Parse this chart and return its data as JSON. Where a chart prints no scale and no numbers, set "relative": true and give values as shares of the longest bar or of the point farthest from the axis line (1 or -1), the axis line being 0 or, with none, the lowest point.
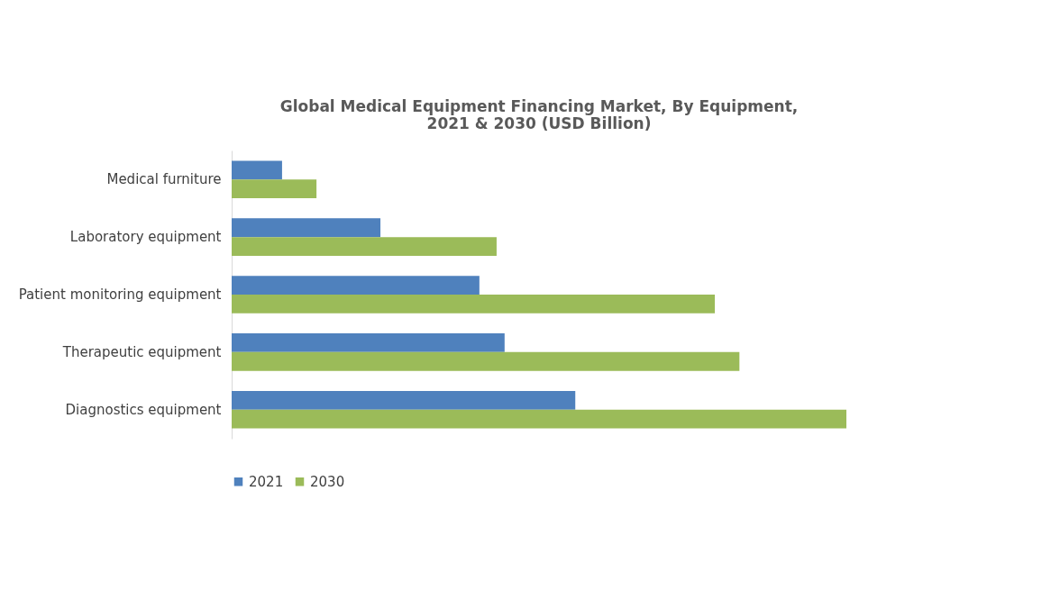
{
  "chart_data": {
    "type": "bar",
    "orientation": "horizontal",
    "relative": true,
    "title": "Global Medical Equipment  Financing Market, By Equipment,\n2021 & 2030 (USD Billion)",
    "categories": [
      "Medical furniture",
      "Laboratory equipment",
      "Patient monitoring equipment",
      "Therapeutic equipment",
      "Diagnostics equipment"
    ],
    "series": [
      {
        "name": "2021",
        "color": "#4f81bd",
        "values": [
          0.082,
          0.242,
          0.403,
          0.444,
          0.559
        ]
      },
      {
        "name": "2030",
        "color": "#9bbb59",
        "values": [
          0.138,
          0.431,
          0.786,
          0.826,
          1
        ]
      }
    ],
    "legend": "bottom"
  }
}
